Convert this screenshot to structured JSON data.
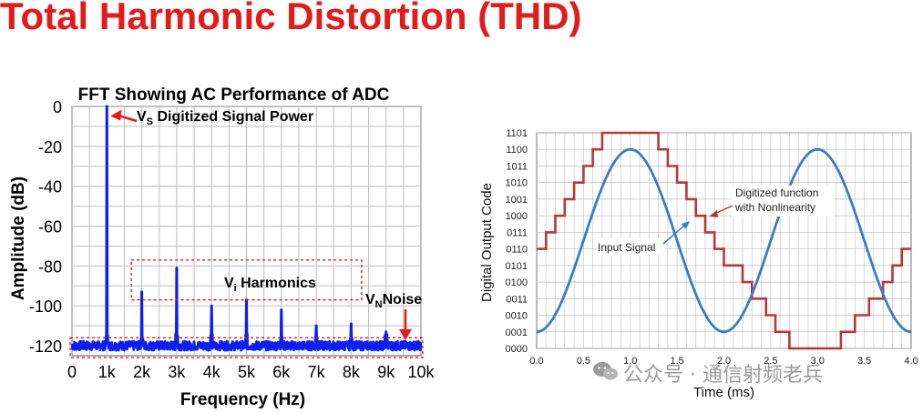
{
  "slide": {
    "title": "Total Harmonic Distortion (THD)",
    "watermark": "公众号 · 通信射频老兵"
  },
  "chart_data": [
    {
      "type": "line",
      "title": "FFT Showing AC Performance of ADC",
      "xlabel": "Frequency (Hz)",
      "ylabel": "Amplitude (dB)",
      "xlim": [
        0,
        10
      ],
      "ylim": [
        -125,
        0
      ],
      "x_ticks": [
        "0",
        "1k",
        "2k",
        "3k",
        "4k",
        "5k",
        "6k",
        "7k",
        "8k",
        "9k",
        "10k"
      ],
      "y_ticks": [
        "0",
        "-20",
        "-40",
        "-60",
        "-80",
        "-100",
        "-120"
      ],
      "grid": true,
      "series": [
        {
          "color": "#0b1ff0",
          "peaks": [
            {
              "x": 1,
              "y": 0
            },
            {
              "x": 2,
              "y": -93
            },
            {
              "x": 3,
              "y": -81
            },
            {
              "x": 4,
              "y": -100
            },
            {
              "x": 5,
              "y": -97
            },
            {
              "x": 6,
              "y": -102
            },
            {
              "x": 7,
              "y": -110
            },
            {
              "x": 8,
              "y": -109
            },
            {
              "x": 9,
              "y": -113
            }
          ],
          "noise_floor": -120
        }
      ],
      "annotations": {
        "signal_sub": "S",
        "signal_text": " Digitized Signal Power",
        "harmonics_sub": "i",
        "harmonics_text": " Harmonics",
        "noise_sub": "N",
        "noise_text": "Noise",
        "letter": "V"
      }
    },
    {
      "type": "line",
      "xlabel": "Time (ms)",
      "ylabel": "Digital Output Code",
      "xlim": [
        0,
        4.0
      ],
      "ylim": [
        0,
        13
      ],
      "x_ticks": [
        "0.0",
        "0.5",
        "1.0",
        "1.5",
        "2.0",
        "2.5",
        "3.0",
        "3.5",
        "4.0"
      ],
      "y_ticks": [
        "0000",
        "0001",
        "0010",
        "0011",
        "0100",
        "0101",
        "0110",
        "0111",
        "1000",
        "1001",
        "1010",
        "1011",
        "1100",
        "1101"
      ],
      "grid": true,
      "series": [
        {
          "name": "Input Signal",
          "color": "#3a7cc3",
          "function": "6.5 + 5.5*sin(pi*(t-0.5))"
        },
        {
          "name": "Digitized function with Nonlinearity",
          "color": "#b8383a",
          "steps": [
            [
              0.0,
              6
            ],
            [
              0.1,
              7
            ],
            [
              0.2,
              8
            ],
            [
              0.3,
              9
            ],
            [
              0.4,
              10
            ],
            [
              0.5,
              11
            ],
            [
              0.6,
              12
            ],
            [
              0.7,
              13
            ],
            [
              1.3,
              12
            ],
            [
              1.4,
              11
            ],
            [
              1.5,
              10
            ],
            [
              1.6,
              9
            ],
            [
              1.7,
              8
            ],
            [
              1.8,
              7
            ],
            [
              1.9,
              6
            ],
            [
              2.0,
              5
            ],
            [
              2.2,
              4
            ],
            [
              2.3,
              3
            ],
            [
              2.45,
              2
            ],
            [
              2.55,
              1
            ],
            [
              2.7,
              0
            ],
            [
              3.25,
              1
            ],
            [
              3.4,
              2
            ],
            [
              3.55,
              3
            ],
            [
              3.7,
              4
            ],
            [
              3.8,
              5
            ],
            [
              3.9,
              6
            ],
            [
              4.0,
              6
            ]
          ]
        }
      ],
      "annotations": {
        "input_signal": "Input Signal",
        "digitized_line1": "Digitized function",
        "digitized_line2": "with Nonlinearity"
      }
    }
  ]
}
